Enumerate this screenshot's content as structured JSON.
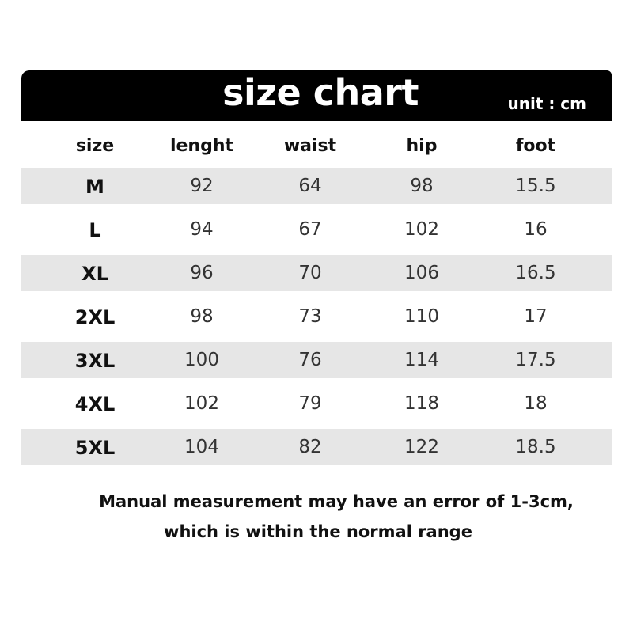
{
  "header": {
    "title": "size chart",
    "unit": "unit : cm"
  },
  "columns": [
    "size",
    "lenght",
    "waist",
    "hip",
    "foot"
  ],
  "rows": [
    [
      "M",
      "92",
      "64",
      "98",
      "15.5"
    ],
    [
      "L",
      "94",
      "67",
      "102",
      "16"
    ],
    [
      "XL",
      "96",
      "70",
      "106",
      "16.5"
    ],
    [
      "2XL",
      "98",
      "73",
      "110",
      "17"
    ],
    [
      "3XL",
      "100",
      "76",
      "114",
      "17.5"
    ],
    [
      "4XL",
      "102",
      "79",
      "118",
      "18"
    ],
    [
      "5XL",
      "104",
      "82",
      "122",
      "18.5"
    ]
  ],
  "note": {
    "line1": "Manual measurement may have an error of 1-3cm,",
    "line2": "which is within the normal range"
  },
  "colors": {
    "header_bg": "#000000",
    "stripe": "#e6e6e6"
  }
}
